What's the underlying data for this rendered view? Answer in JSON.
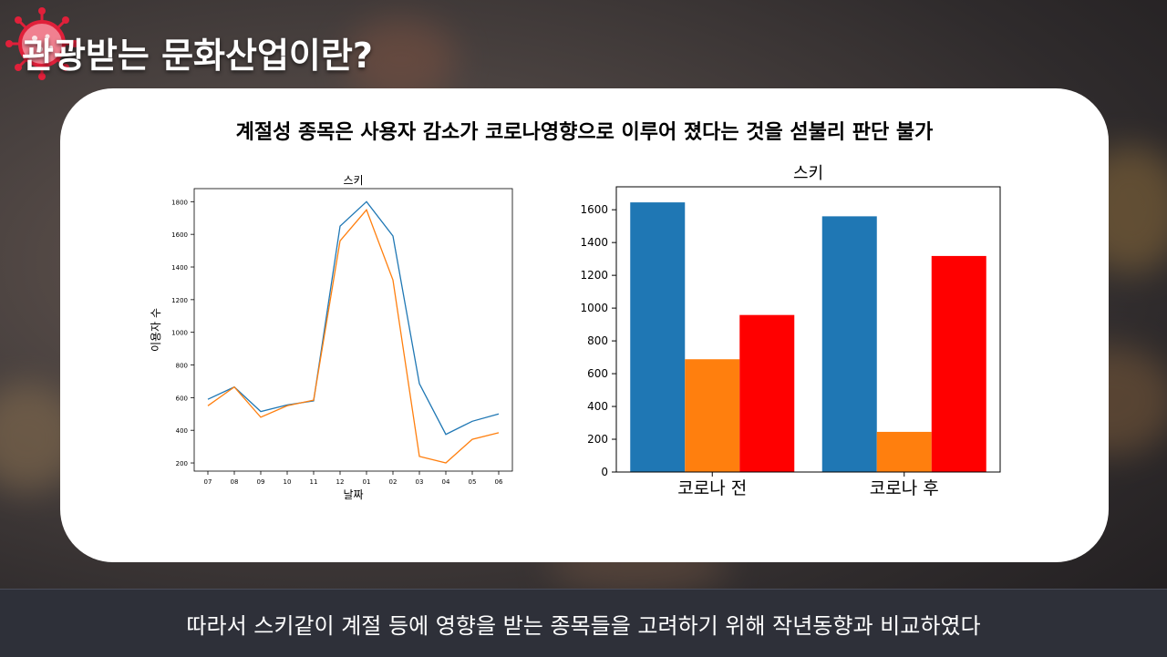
{
  "slide": {
    "title": "관광받는 문화산업이란?",
    "subtitle": "계절성 종목은 사용자 감소가 코로나영향으로 이루어 졌다는 것을 섣불리 판단 불가",
    "footer": "따라서 스키같이 계절 등에 영향을 받는 종목들을 고려하기 위해 작년동향과 비교하였다",
    "icon": "virus-icon"
  },
  "chart_data": [
    {
      "type": "line",
      "title": "스키",
      "xlabel": "날짜",
      "ylabel": "이용자 수",
      "x": [
        "07",
        "08",
        "09",
        "10",
        "11",
        "12",
        "01",
        "02",
        "03",
        "04",
        "05",
        "06"
      ],
      "ylim": [
        150,
        1880
      ],
      "yticks": [
        200,
        400,
        600,
        800,
        1000,
        1200,
        1400,
        1600,
        1800
      ],
      "series": [
        {
          "color": "#1f77b4",
          "values": [
            590,
            665,
            515,
            555,
            580,
            1650,
            1800,
            1590,
            685,
            375,
            455,
            500
          ]
        },
        {
          "color": "#ff7f0e",
          "values": [
            550,
            665,
            480,
            550,
            585,
            1560,
            1750,
            1320,
            240,
            200,
            345,
            385
          ]
        }
      ]
    },
    {
      "type": "bar",
      "title": "스키",
      "categories": [
        "코로나 전",
        "코로나 후"
      ],
      "ylim": [
        0,
        1740
      ],
      "yticks": [
        0,
        200,
        400,
        600,
        800,
        1000,
        1200,
        1400,
        1600
      ],
      "series": [
        {
          "color": "#1f77b4",
          "values": [
            1645,
            1560
          ]
        },
        {
          "color": "#ff7f0e",
          "values": [
            688,
            245
          ]
        },
        {
          "color": "#ff0000",
          "values": [
            958,
            1318
          ]
        }
      ]
    }
  ]
}
